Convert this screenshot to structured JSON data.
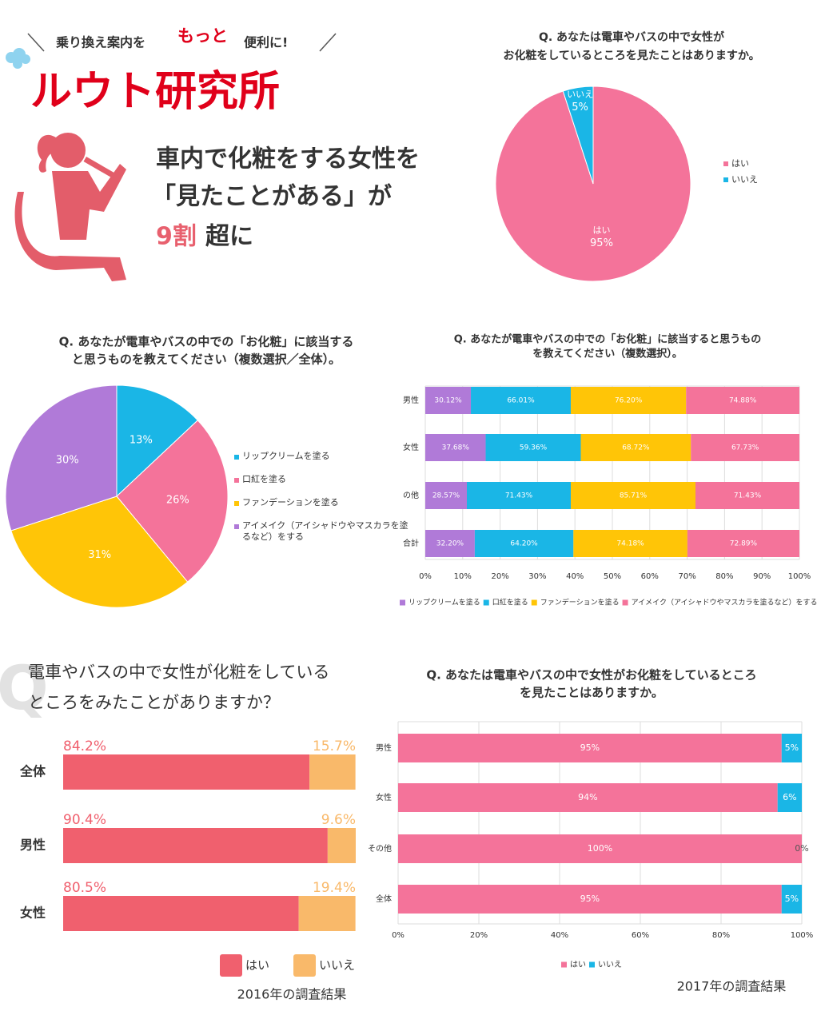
{
  "header": {
    "tagline": [
      "乗り換え案内を",
      "もっと",
      "便利に!"
    ],
    "brand": "ルウト研究所",
    "headline": [
      "車内で化粧をする女性を",
      "「見たことがある」が"
    ],
    "headline_em": "9割",
    "headline_end": "超に"
  },
  "chart_data": [
    {
      "type": "pie",
      "title": [
        "Q. あなたは電車やバスの中で女性が",
        "お化粧をしているところを見たことはありますか。"
      ],
      "categories": [
        "はい",
        "いいえ"
      ],
      "values": [
        95,
        5
      ],
      "value_labels": [
        "95%",
        "5%"
      ],
      "colors": [
        "#f4739a",
        "#1ab6e6"
      ],
      "slice_label_names": true,
      "legend": "right"
    },
    {
      "type": "pie",
      "title": [
        "Q.  あなたが電車やバスの中での「お化粧」に該当する",
        "と思うものを教えてください（複数選択／全体）。"
      ],
      "categories": [
        "リップクリームを塗る",
        "口紅を塗る",
        "ファンデーションを塗る",
        "アイメイク（アイシャドウやマスカラを塗るなど）をする"
      ],
      "values": [
        13,
        26,
        31,
        30
      ],
      "value_labels": [
        "13%",
        "26%",
        "31%",
        "30%"
      ],
      "colors": [
        "#1ab6e6",
        "#f4739a",
        "#ffc507",
        "#b07ad8"
      ],
      "slice_label_names": false,
      "legend": "right"
    },
    {
      "type": "bar",
      "orientation": "horizontal",
      "stacked": true,
      "stack": "percent",
      "title": [
        "Q.  あなたが電車やバスの中での「お化粧」に該当すると思うもの",
        "を教えてください（複数選択）。"
      ],
      "categories": [
        "男性",
        "女性",
        "の他",
        "合計"
      ],
      "series": [
        {
          "name": "リップクリームを塗る",
          "color": "#b07ad8",
          "values": [
            30.12,
            37.68,
            28.57,
            32.2
          ],
          "value_labels": [
            "30.12%",
            "37.68%",
            "28.57%",
            "32.20%"
          ]
        },
        {
          "name": "口紅を塗る",
          "color": "#1ab6e6",
          "values": [
            66.01,
            59.36,
            71.43,
            64.2
          ],
          "value_labels": [
            "66.01%",
            "59.36%",
            "71.43%",
            "64.20%"
          ]
        },
        {
          "name": "ファンデーションを塗る",
          "color": "#ffc507",
          "values": [
            76.2,
            68.72,
            85.71,
            74.18
          ],
          "value_labels": [
            "76.20%",
            "68.72%",
            "85.71%",
            "74.18%"
          ]
        },
        {
          "name": "アイメイク（アイシャドウやマスカラを塗るなど）をする",
          "color": "#f4739a",
          "values": [
            74.88,
            67.73,
            71.43,
            72.89
          ],
          "value_labels": [
            "74.88%",
            "67.73%",
            "71.43%",
            "72.89%"
          ]
        }
      ],
      "xlim": [
        0,
        100
      ],
      "xticks": [
        {
          "value": 0,
          "label": "0%"
        },
        {
          "value": 10,
          "label": "10%"
        },
        {
          "value": 20,
          "label": "20%"
        },
        {
          "value": 30,
          "label": "30%"
        },
        {
          "value": 40,
          "label": "40%"
        },
        {
          "value": 50,
          "label": "50%"
        },
        {
          "value": 60,
          "label": "60%"
        },
        {
          "value": 70,
          "label": "70%"
        },
        {
          "value": 80,
          "label": "80%"
        },
        {
          "value": 90,
          "label": "90%"
        },
        {
          "value": 100,
          "label": "100%"
        }
      ],
      "grid": true,
      "legend": "bottom"
    },
    {
      "type": "bar",
      "orientation": "horizontal",
      "stacked": true,
      "title": [
        "電車やバスの中で女性が化粧をしている",
        "ところをみたことがありますか？"
      ],
      "categories": [
        "全体",
        "男性",
        "女性"
      ],
      "series": [
        {
          "name": "はい",
          "color": "#f0606e",
          "values": [
            84.2,
            90.4,
            80.5
          ],
          "value_labels": [
            "84.2%",
            "90.4%",
            "80.5%"
          ]
        },
        {
          "name": "いいえ",
          "color": "#f9b96a",
          "values": [
            15.7,
            9.6,
            19.4
          ],
          "value_labels": [
            "15.7%",
            "9.6%",
            "19.4%"
          ]
        }
      ],
      "xlim": [
        0,
        100
      ],
      "grid": false,
      "legend": "bottom",
      "label_position": "above",
      "footer": "2016年の調査結果"
    },
    {
      "type": "bar",
      "orientation": "horizontal",
      "stacked": true,
      "title": [
        "Q. あなたは電車やバスの中で女性がお化粧をしているところ",
        "を見たことはありますか。"
      ],
      "categories": [
        "男性",
        "女性",
        "その他",
        "全体"
      ],
      "series": [
        {
          "name": "はい",
          "color": "#f4739a",
          "values": [
            95,
            94,
            100,
            95
          ],
          "value_labels": [
            "95%",
            "94%",
            "100%",
            "95%"
          ]
        },
        {
          "name": "いいえ",
          "color": "#1ab6e6",
          "values": [
            5,
            6,
            0,
            5
          ],
          "value_labels": [
            "5%",
            "6%",
            "0%",
            "5%"
          ]
        }
      ],
      "xlim": [
        0,
        100
      ],
      "xticks": [
        {
          "value": 0,
          "label": "0%"
        },
        {
          "value": 20,
          "label": "20%"
        },
        {
          "value": 40,
          "label": "40%"
        },
        {
          "value": 60,
          "label": "60%"
        },
        {
          "value": 80,
          "label": "80%"
        },
        {
          "value": 100,
          "label": "100%"
        }
      ],
      "grid": true,
      "legend": "bottom",
      "footer": "2017年の調査結果"
    }
  ]
}
